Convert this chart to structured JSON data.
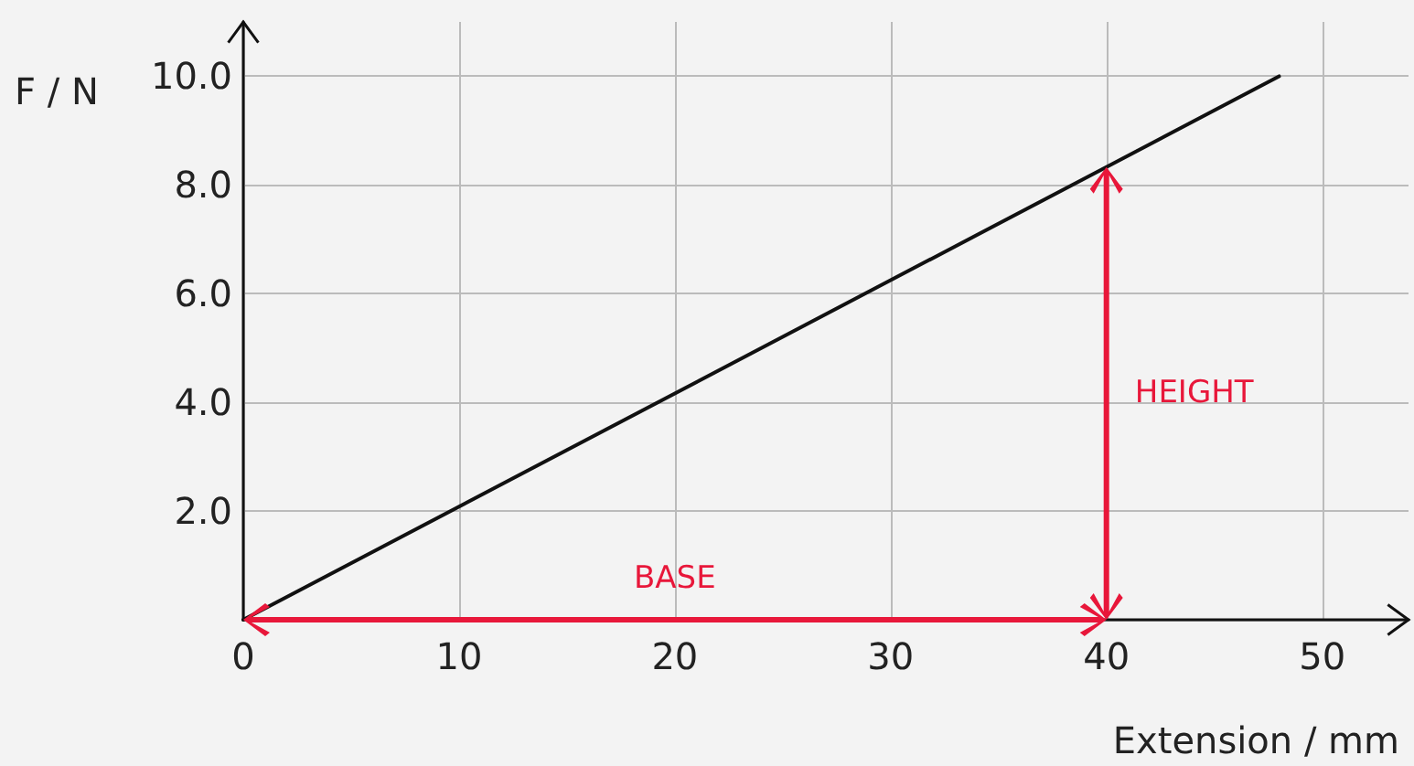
{
  "chart_data": {
    "type": "line",
    "xlabel": "Extension / mm",
    "ylabel": "F / N",
    "x": [
      0,
      40,
      48
    ],
    "series": [
      {
        "color": "#111111",
        "values": [
          0,
          8.33,
          10
        ]
      }
    ],
    "xlim": [
      0,
      54
    ],
    "ylim": [
      0,
      11
    ],
    "xticks": [
      {
        "value": 0,
        "label": "0"
      },
      10,
      20,
      30,
      40,
      50
    ],
    "yticks": [
      {
        "value": 0,
        "label": null
      },
      {
        "value": 2,
        "label": "2.0"
      },
      {
        "value": 4,
        "label": "4.0"
      },
      {
        "value": 6,
        "label": "6.0"
      },
      {
        "value": 8,
        "label": "8.0"
      },
      {
        "value": 10,
        "label": "10.0"
      }
    ],
    "annotations": [
      "BASE",
      "HEIGHT"
    ],
    "grid": true,
    "marker": "none",
    "line_style": "solid"
  }
}
